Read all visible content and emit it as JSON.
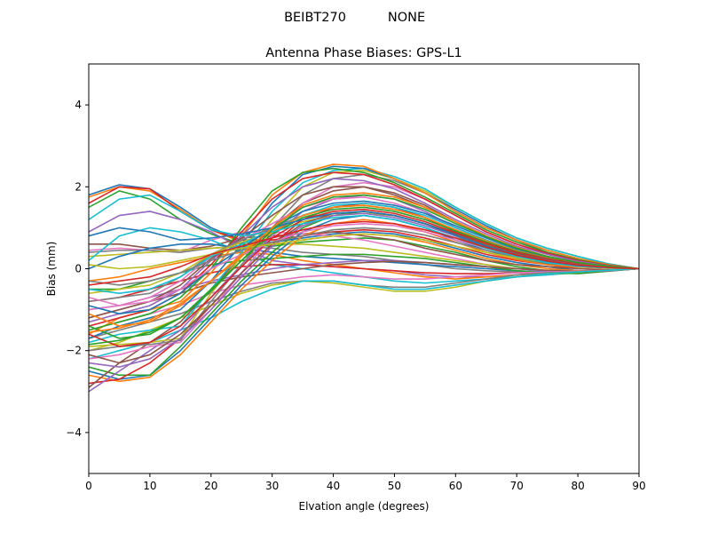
{
  "figure": {
    "suptitle_left": "BEIBT270",
    "suptitle_right": "NONE"
  },
  "chart_data": {
    "type": "line",
    "title": "Antenna Phase Biases: GPS-L1",
    "xlabel": "Elvation angle (degrees)",
    "ylabel": "Bias (mm)",
    "xlim": [
      0,
      90
    ],
    "ylim": [
      -5,
      5
    ],
    "xticks": [
      0,
      10,
      20,
      30,
      40,
      50,
      60,
      70,
      80,
      90
    ],
    "yticks": [
      -4,
      -2,
      0,
      2,
      4
    ],
    "ytick_labels": [
      "−4",
      "−2",
      "0",
      "2",
      "4"
    ],
    "grid": false,
    "x": [
      0,
      5,
      10,
      15,
      20,
      25,
      30,
      35,
      40,
      45,
      50,
      55,
      60,
      65,
      70,
      75,
      80,
      85,
      90
    ],
    "colors": [
      "#1f77b4",
      "#ff7f0e",
      "#2ca02c",
      "#d62728",
      "#9467bd",
      "#8c564b",
      "#e377c2",
      "#7f7f7f",
      "#bcbd22",
      "#17becf"
    ],
    "series": [
      {
        "values": [
          1.8,
          2.05,
          1.95,
          1.5,
          1.0,
          0.7,
          0.65,
          0.75,
          0.85,
          0.9,
          0.85,
          0.7,
          0.5,
          0.3,
          0.15,
          0.05,
          -0.05,
          -0.05,
          0
        ]
      },
      {
        "values": [
          1.75,
          2.0,
          1.9,
          1.45,
          0.95,
          0.65,
          0.6,
          0.7,
          0.8,
          0.85,
          0.8,
          0.65,
          0.45,
          0.25,
          0.1,
          0.0,
          -0.05,
          -0.05,
          0
        ]
      },
      {
        "values": [
          1.5,
          1.9,
          1.7,
          1.2,
          0.85,
          0.6,
          0.55,
          0.65,
          0.7,
          0.75,
          0.7,
          0.55,
          0.4,
          0.2,
          0.05,
          -0.05,
          -0.1,
          -0.05,
          0
        ]
      },
      {
        "values": [
          1.6,
          2.0,
          1.95,
          1.4,
          0.95,
          0.7,
          0.7,
          0.8,
          0.9,
          0.95,
          0.9,
          0.75,
          0.55,
          0.35,
          0.2,
          0.1,
          0.0,
          -0.03,
          0
        ]
      },
      {
        "values": [
          0.9,
          1.3,
          1.4,
          1.2,
          0.9,
          0.5,
          0.2,
          0.1,
          0.05,
          0.0,
          -0.05,
          -0.15,
          -0.2,
          -0.2,
          -0.15,
          -0.1,
          -0.1,
          -0.05,
          0
        ]
      },
      {
        "values": [
          0.6,
          0.6,
          0.5,
          0.45,
          0.55,
          0.75,
          0.8,
          0.85,
          0.9,
          0.8,
          0.7,
          0.5,
          0.35,
          0.2,
          0.1,
          0.05,
          0.0,
          -0.03,
          0
        ]
      },
      {
        "values": [
          0.45,
          0.5,
          0.45,
          0.4,
          0.7,
          0.9,
          0.9,
          0.85,
          0.8,
          0.7,
          0.55,
          0.4,
          0.25,
          0.1,
          0.0,
          -0.05,
          -0.08,
          -0.05,
          0
        ]
      },
      {
        "values": [
          0.4,
          0.45,
          0.45,
          0.4,
          0.5,
          0.55,
          0.5,
          0.4,
          0.35,
          0.3,
          0.2,
          0.1,
          0.0,
          -0.05,
          -0.08,
          -0.1,
          -0.1,
          -0.05,
          0
        ]
      },
      {
        "values": [
          0.3,
          0.35,
          0.4,
          0.45,
          0.5,
          0.55,
          0.6,
          0.6,
          0.55,
          0.5,
          0.4,
          0.3,
          0.2,
          0.1,
          0.0,
          -0.05,
          -0.08,
          -0.05,
          0
        ]
      },
      {
        "values": [
          0.2,
          0.8,
          1.0,
          0.9,
          0.7,
          0.4,
          0.1,
          0.0,
          -0.1,
          -0.2,
          -0.3,
          -0.35,
          -0.3,
          -0.25,
          -0.2,
          -0.15,
          -0.1,
          -0.05,
          0
        ]
      },
      {
        "values": [
          0.0,
          0.3,
          0.5,
          0.6,
          0.6,
          0.5,
          0.4,
          0.3,
          0.25,
          0.2,
          0.15,
          0.1,
          0.05,
          0.0,
          -0.05,
          -0.08,
          -0.1,
          -0.05,
          0
        ]
      },
      {
        "values": [
          -0.3,
          -0.2,
          0.0,
          0.15,
          0.3,
          0.4,
          0.35,
          0.2,
          0.1,
          0.0,
          -0.1,
          -0.2,
          -0.25,
          -0.2,
          -0.15,
          -0.12,
          -0.1,
          -0.05,
          0
        ]
      },
      {
        "values": [
          -0.5,
          -0.5,
          -0.3,
          -0.1,
          0.1,
          0.2,
          0.25,
          0.3,
          0.35,
          0.35,
          0.3,
          0.25,
          0.15,
          0.05,
          -0.05,
          -0.1,
          -0.12,
          -0.06,
          0
        ]
      },
      {
        "values": [
          -0.8,
          -0.7,
          -0.5,
          -0.3,
          -0.1,
          0.05,
          0.1,
          0.1,
          0.05,
          0.0,
          -0.05,
          -0.1,
          -0.12,
          -0.12,
          -0.1,
          -0.1,
          -0.08,
          -0.05,
          0
        ]
      },
      {
        "values": [
          -1.0,
          -0.9,
          -0.7,
          -0.5,
          -0.3,
          -0.15,
          0.0,
          0.1,
          0.15,
          0.2,
          0.2,
          0.15,
          0.1,
          0.05,
          0.0,
          -0.05,
          -0.07,
          -0.05,
          0
        ]
      },
      {
        "values": [
          -1.2,
          -1.0,
          -0.8,
          -0.6,
          -0.35,
          -0.2,
          -0.1,
          0.0,
          0.1,
          0.15,
          0.18,
          0.15,
          0.1,
          0.05,
          0.0,
          -0.04,
          -0.06,
          -0.04,
          0
        ]
      },
      {
        "values": [
          -1.5,
          -1.3,
          -1.1,
          -0.9,
          -0.6,
          -0.4,
          -0.3,
          -0.2,
          -0.15,
          -0.2,
          -0.25,
          -0.25,
          -0.2,
          -0.15,
          -0.1,
          -0.08,
          -0.06,
          -0.04,
          0
        ]
      },
      {
        "values": [
          -1.7,
          -1.5,
          -1.3,
          -1.1,
          -0.8,
          -0.55,
          -0.35,
          -0.3,
          -0.3,
          -0.4,
          -0.45,
          -0.45,
          -0.35,
          -0.25,
          -0.15,
          -0.1,
          -0.07,
          -0.04,
          0
        ]
      },
      {
        "values": [
          -2.0,
          -1.8,
          -1.5,
          -1.2,
          -0.9,
          -0.6,
          -0.4,
          -0.3,
          -0.35,
          -0.45,
          -0.55,
          -0.55,
          -0.45,
          -0.3,
          -0.2,
          -0.12,
          -0.08,
          -0.04,
          0
        ]
      },
      {
        "values": [
          -2.2,
          -2.0,
          -1.8,
          -1.5,
          -1.2,
          -0.8,
          -0.5,
          -0.3,
          -0.3,
          -0.4,
          -0.5,
          -0.5,
          -0.4,
          -0.3,
          -0.2,
          -0.12,
          -0.08,
          -0.04,
          0
        ]
      },
      {
        "values": [
          -2.5,
          -2.7,
          -2.6,
          -2.0,
          -1.2,
          -0.4,
          0.3,
          0.9,
          1.2,
          1.3,
          1.2,
          1.0,
          0.7,
          0.45,
          0.25,
          0.12,
          0.05,
          0.02,
          0
        ]
      },
      {
        "values": [
          -2.6,
          -2.75,
          -2.65,
          -2.1,
          -1.3,
          -0.5,
          0.2,
          0.8,
          1.1,
          1.2,
          1.1,
          0.9,
          0.65,
          0.4,
          0.22,
          0.1,
          0.04,
          0.01,
          0
        ]
      },
      {
        "values": [
          -2.4,
          -2.6,
          -2.6,
          -1.9,
          -1.1,
          -0.3,
          0.4,
          1.0,
          1.3,
          1.4,
          1.3,
          1.1,
          0.8,
          0.5,
          0.3,
          0.15,
          0.06,
          0.02,
          0
        ]
      },
      {
        "values": [
          -2.8,
          -2.7,
          -2.3,
          -1.7,
          -0.9,
          -0.1,
          0.6,
          1.2,
          1.5,
          1.6,
          1.5,
          1.25,
          0.9,
          0.6,
          0.35,
          0.2,
          0.1,
          0.04,
          0
        ]
      },
      {
        "values": [
          -3.0,
          -2.5,
          -2.0,
          -1.5,
          -0.7,
          0.1,
          0.8,
          1.4,
          1.7,
          1.8,
          1.7,
          1.4,
          1.0,
          0.7,
          0.45,
          0.25,
          0.12,
          0.05,
          0
        ]
      },
      {
        "values": [
          -2.9,
          -2.3,
          -1.8,
          -1.3,
          -0.5,
          0.3,
          1.0,
          1.6,
          1.9,
          2.0,
          1.85,
          1.55,
          1.15,
          0.8,
          0.5,
          0.3,
          0.15,
          0.06,
          0
        ]
      },
      {
        "values": [
          -2.2,
          -2.1,
          -1.9,
          -1.8,
          -1.0,
          -0.1,
          0.8,
          1.6,
          2.0,
          2.1,
          2.0,
          1.7,
          1.3,
          0.9,
          0.6,
          0.35,
          0.18,
          0.07,
          0
        ]
      },
      {
        "values": [
          -2.0,
          -1.9,
          -1.85,
          -1.75,
          -0.8,
          0.1,
          1.0,
          1.8,
          2.2,
          2.3,
          2.15,
          1.85,
          1.4,
          1.0,
          0.7,
          0.4,
          0.2,
          0.08,
          0
        ]
      },
      {
        "values": [
          -1.9,
          -1.85,
          -1.8,
          -1.7,
          -0.6,
          0.3,
          1.2,
          2.0,
          2.35,
          2.4,
          2.2,
          1.9,
          1.5,
          1.1,
          0.75,
          0.5,
          0.3,
          0.12,
          0
        ]
      },
      {
        "values": [
          -1.8,
          -1.6,
          -1.5,
          -1.4,
          -0.5,
          0.4,
          1.4,
          2.1,
          2.4,
          2.45,
          2.25,
          1.95,
          1.5,
          1.1,
          0.75,
          0.5,
          0.3,
          0.12,
          0
        ]
      },
      {
        "values": [
          -1.7,
          -1.4,
          -1.2,
          -1.0,
          -0.3,
          0.6,
          1.6,
          2.3,
          2.5,
          2.45,
          2.2,
          1.85,
          1.45,
          1.05,
          0.7,
          0.45,
          0.25,
          0.1,
          0
        ]
      },
      {
        "values": [
          -1.6,
          -1.2,
          -1.0,
          -0.8,
          -0.1,
          0.8,
          1.8,
          2.35,
          2.55,
          2.5,
          2.2,
          1.85,
          1.4,
          1.0,
          0.7,
          0.45,
          0.25,
          0.1,
          0
        ]
      },
      {
        "values": [
          -1.5,
          -1.3,
          -1.1,
          -0.7,
          0.0,
          1.0,
          1.9,
          2.35,
          2.45,
          2.35,
          2.1,
          1.75,
          1.35,
          0.95,
          0.65,
          0.4,
          0.22,
          0.08,
          0
        ]
      },
      {
        "values": [
          -1.4,
          -1.2,
          -1.0,
          -0.6,
          0.1,
          0.9,
          1.7,
          2.2,
          2.35,
          2.3,
          2.05,
          1.7,
          1.3,
          0.9,
          0.6,
          0.38,
          0.2,
          0.08,
          0
        ]
      },
      {
        "values": [
          -1.3,
          -1.1,
          -0.9,
          -0.5,
          0.2,
          0.8,
          1.5,
          2.0,
          2.2,
          2.15,
          1.95,
          1.6,
          1.2,
          0.85,
          0.55,
          0.35,
          0.18,
          0.07,
          0
        ]
      },
      {
        "values": [
          -1.2,
          -1.0,
          -0.8,
          -0.4,
          0.25,
          0.75,
          1.3,
          1.8,
          2.0,
          2.0,
          1.8,
          1.5,
          1.15,
          0.8,
          0.5,
          0.3,
          0.15,
          0.06,
          0
        ]
      },
      {
        "values": [
          -1.0,
          -0.9,
          -0.7,
          -0.3,
          0.3,
          0.7,
          1.1,
          1.5,
          1.7,
          1.75,
          1.6,
          1.35,
          1.0,
          0.7,
          0.45,
          0.28,
          0.14,
          0.05,
          0
        ]
      },
      {
        "values": [
          -0.8,
          -0.7,
          -0.6,
          -0.2,
          0.35,
          0.7,
          1.0,
          1.3,
          1.5,
          1.55,
          1.45,
          1.25,
          0.95,
          0.65,
          0.42,
          0.25,
          0.12,
          0.05,
          0
        ]
      },
      {
        "values": [
          -0.6,
          -0.5,
          -0.4,
          -0.1,
          0.35,
          0.65,
          0.9,
          1.15,
          1.3,
          1.35,
          1.3,
          1.1,
          0.85,
          0.6,
          0.38,
          0.22,
          0.1,
          0.04,
          0
        ]
      },
      {
        "values": [
          -0.5,
          -0.6,
          -0.5,
          -0.2,
          0.3,
          0.6,
          0.95,
          1.3,
          1.55,
          1.6,
          1.5,
          1.3,
          1.0,
          0.7,
          0.45,
          0.27,
          0.13,
          0.05,
          0
        ]
      },
      {
        "values": [
          -0.9,
          -1.1,
          -1.0,
          -0.6,
          0.0,
          0.5,
          1.0,
          1.4,
          1.6,
          1.65,
          1.55,
          1.35,
          1.05,
          0.75,
          0.48,
          0.28,
          0.14,
          0.05,
          0
        ]
      },
      {
        "values": [
          -1.1,
          -1.4,
          -1.3,
          -0.9,
          -0.3,
          0.3,
          0.9,
          1.3,
          1.5,
          1.55,
          1.45,
          1.25,
          0.95,
          0.68,
          0.44,
          0.26,
          0.13,
          0.05,
          0
        ]
      },
      {
        "values": [
          -1.4,
          -1.7,
          -1.6,
          -1.2,
          -0.5,
          0.2,
          0.85,
          1.25,
          1.45,
          1.5,
          1.4,
          1.2,
          0.92,
          0.65,
          0.42,
          0.25,
          0.12,
          0.05,
          0
        ]
      },
      {
        "values": [
          -1.6,
          -1.9,
          -1.8,
          -1.4,
          -0.7,
          0.05,
          0.75,
          1.2,
          1.4,
          1.45,
          1.35,
          1.15,
          0.88,
          0.62,
          0.4,
          0.24,
          0.12,
          0.05,
          0
        ]
      },
      {
        "values": [
          -2.3,
          -2.4,
          -2.2,
          -1.7,
          -1.0,
          -0.2,
          0.55,
          1.05,
          1.3,
          1.35,
          1.25,
          1.05,
          0.8,
          0.55,
          0.35,
          0.2,
          0.1,
          0.04,
          0
        ]
      },
      {
        "values": [
          -2.1,
          -2.3,
          -2.1,
          -1.6,
          -0.9,
          -0.1,
          0.6,
          1.1,
          1.35,
          1.4,
          1.3,
          1.1,
          0.85,
          0.58,
          0.37,
          0.22,
          0.11,
          0.04,
          0
        ]
      },
      {
        "values": [
          -0.7,
          -0.9,
          -0.8,
          -0.5,
          0.0,
          0.35,
          0.65,
          0.9,
          1.05,
          1.1,
          1.05,
          0.9,
          0.7,
          0.5,
          0.32,
          0.19,
          0.09,
          0.03,
          0
        ]
      },
      {
        "values": [
          -0.3,
          -0.4,
          -0.3,
          -0.1,
          0.2,
          0.45,
          0.65,
          0.8,
          0.95,
          1.0,
          0.95,
          0.82,
          0.64,
          0.45,
          0.29,
          0.17,
          0.08,
          0.03,
          0
        ]
      },
      {
        "values": [
          0.1,
          0.0,
          0.05,
          0.2,
          0.35,
          0.5,
          0.6,
          0.7,
          0.8,
          0.85,
          0.8,
          0.7,
          0.55,
          0.4,
          0.26,
          0.15,
          0.07,
          0.03,
          0
        ]
      },
      {
        "values": [
          1.2,
          1.7,
          1.8,
          1.4,
          0.95,
          0.8,
          0.9,
          1.1,
          1.25,
          1.3,
          1.2,
          1.0,
          0.75,
          0.5,
          0.3,
          0.15,
          0.06,
          0.02,
          0
        ]
      },
      {
        "values": [
          0.8,
          1.0,
          0.9,
          0.7,
          0.75,
          0.85,
          1.0,
          1.2,
          1.35,
          1.4,
          1.3,
          1.1,
          0.82,
          0.55,
          0.33,
          0.18,
          0.08,
          0.03,
          0
        ]
      },
      {
        "values": [
          -1.55,
          -1.45,
          -1.25,
          -0.85,
          -0.3,
          0.35,
          1.0,
          1.55,
          1.8,
          1.85,
          1.75,
          1.5,
          1.15,
          0.8,
          0.52,
          0.3,
          0.15,
          0.06,
          0
        ]
      },
      {
        "values": [
          -1.85,
          -1.75,
          -1.55,
          -1.2,
          -0.55,
          0.2,
          0.95,
          1.5,
          1.75,
          1.8,
          1.7,
          1.45,
          1.1,
          0.78,
          0.5,
          0.3,
          0.15,
          0.06,
          0
        ]
      },
      {
        "values": [
          -0.4,
          -0.3,
          -0.2,
          0.05,
          0.35,
          0.55,
          0.75,
          0.95,
          1.1,
          1.15,
          1.1,
          0.95,
          0.75,
          0.52,
          0.33,
          0.19,
          0.09,
          0.03,
          0
        ]
      }
    ]
  }
}
